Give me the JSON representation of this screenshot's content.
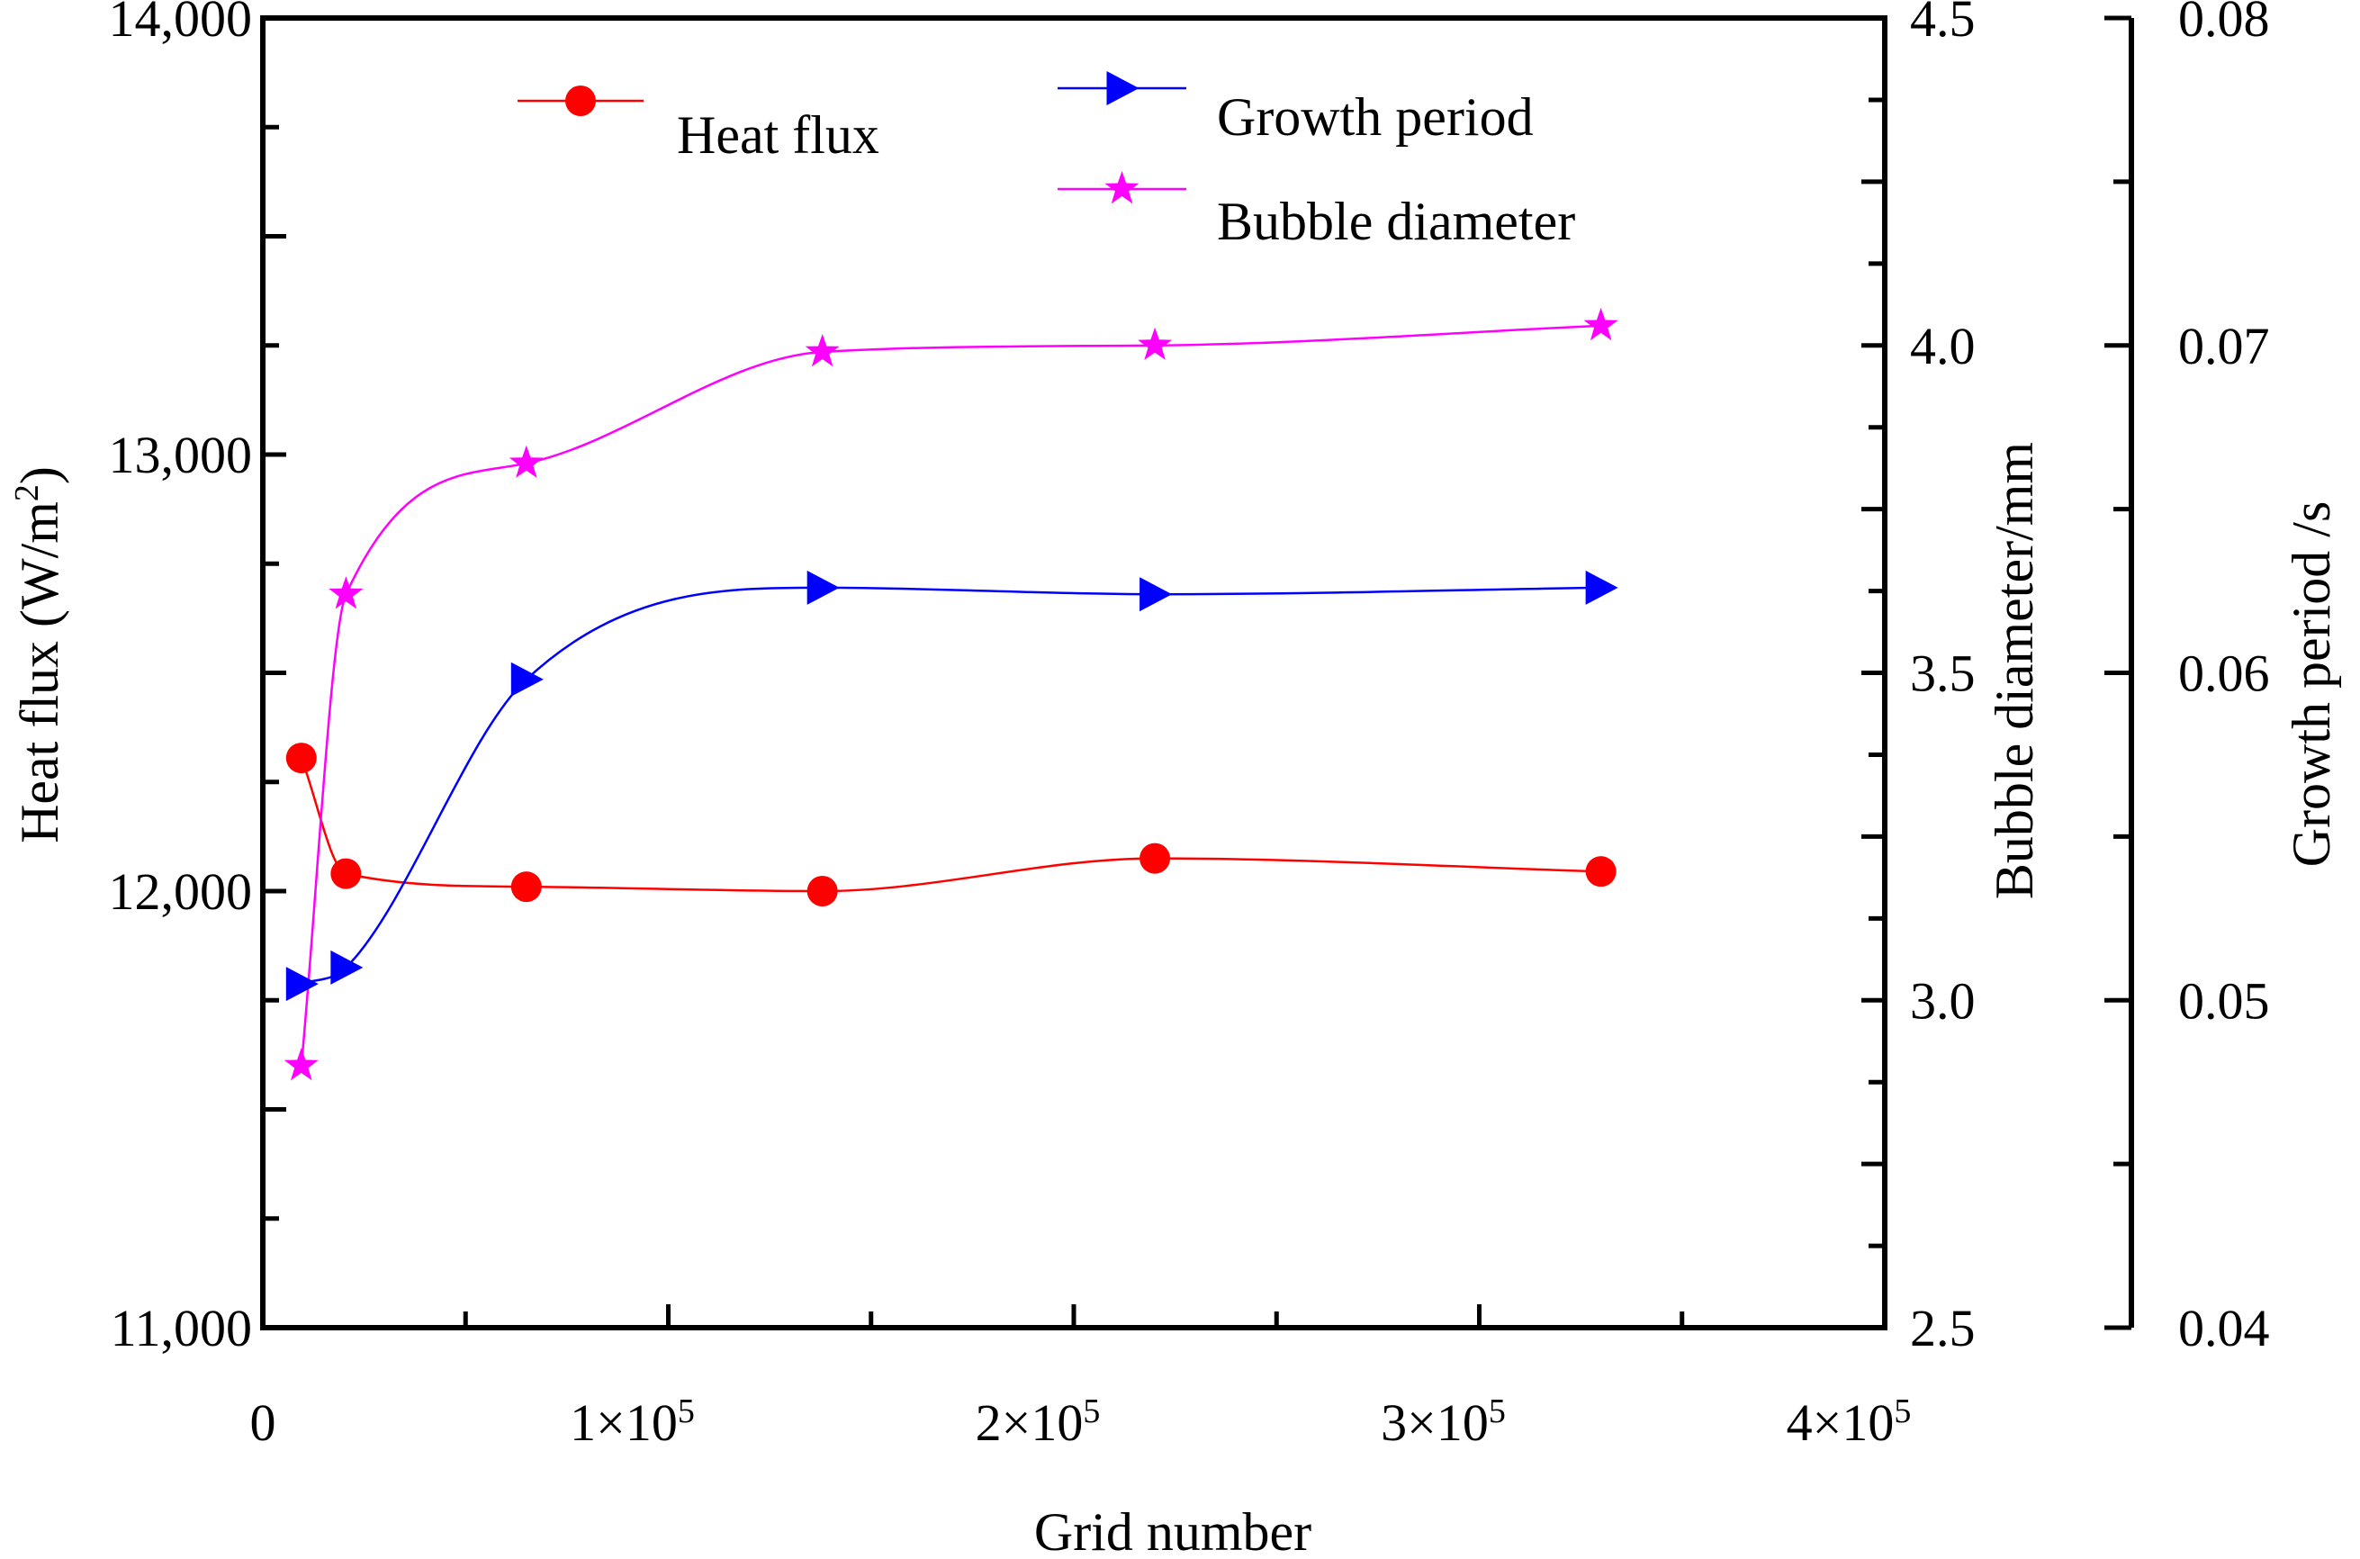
{
  "chart_data": {
    "type": "line",
    "xlabel": "Grid number",
    "x_tick_labels": [
      {
        "value": 0,
        "mantissa": "0",
        "exp": ""
      },
      {
        "value": 100000,
        "mantissa": "1×10",
        "exp": "5"
      },
      {
        "value": 200000,
        "mantissa": "2×10",
        "exp": "5"
      },
      {
        "value": 300000,
        "mantissa": "3×10",
        "exp": "5"
      },
      {
        "value": 400000,
        "mantissa": "4×10",
        "exp": "5"
      }
    ],
    "xlim": [
      0,
      400000
    ],
    "axes": {
      "left": {
        "label_text": "Heat flux  (W/m",
        "label_sup": "2",
        "label_end": ")",
        "ylim": [
          11000,
          14000
        ],
        "tick_labels": [
          "11,000",
          "12,000",
          "13,000",
          "14,000"
        ],
        "tick_values": [
          11000,
          12000,
          13000,
          14000
        ]
      },
      "right1": {
        "label": "Bubble diameter/mm",
        "ylim": [
          2.5,
          4.5
        ],
        "tick_labels": [
          "2.5",
          "3.0",
          "3.5",
          "4.0",
          "4.5"
        ],
        "tick_values": [
          2.5,
          3.0,
          3.5,
          4.0,
          4.5
        ]
      },
      "right2": {
        "label": "Growth period /s",
        "ylim": [
          0.04,
          0.08
        ],
        "tick_labels": [
          "0.04",
          "0.05",
          "0.06",
          "0.07",
          "0.08"
        ],
        "tick_values": [
          0.04,
          0.05,
          0.06,
          0.07,
          0.08
        ]
      }
    },
    "series": [
      {
        "name": "Heat flux",
        "axis": "left",
        "color": "#ff0000",
        "marker": "circle",
        "x": [
          9500,
          20500,
          65000,
          138000,
          220000,
          330000
        ],
        "y": [
          12305,
          12040,
          12010,
          12000,
          12075,
          12045
        ]
      },
      {
        "name": "Growth period",
        "axis": "right2",
        "color": "#0000ff",
        "marker": "triangle-right",
        "x": [
          9500,
          20500,
          65000,
          138000,
          220000,
          330000
        ],
        "y": [
          0.0505,
          0.051,
          0.0598,
          0.0626,
          0.0624,
          0.0626
        ]
      },
      {
        "name": "Bubble diameter",
        "axis": "right1",
        "color": "#ff00ff",
        "marker": "star",
        "x": [
          9500,
          20500,
          65000,
          138000,
          220000,
          330000
        ],
        "y": [
          2.9,
          3.62,
          3.82,
          3.99,
          4.0,
          4.03
        ]
      }
    ],
    "legend_position": "top"
  }
}
